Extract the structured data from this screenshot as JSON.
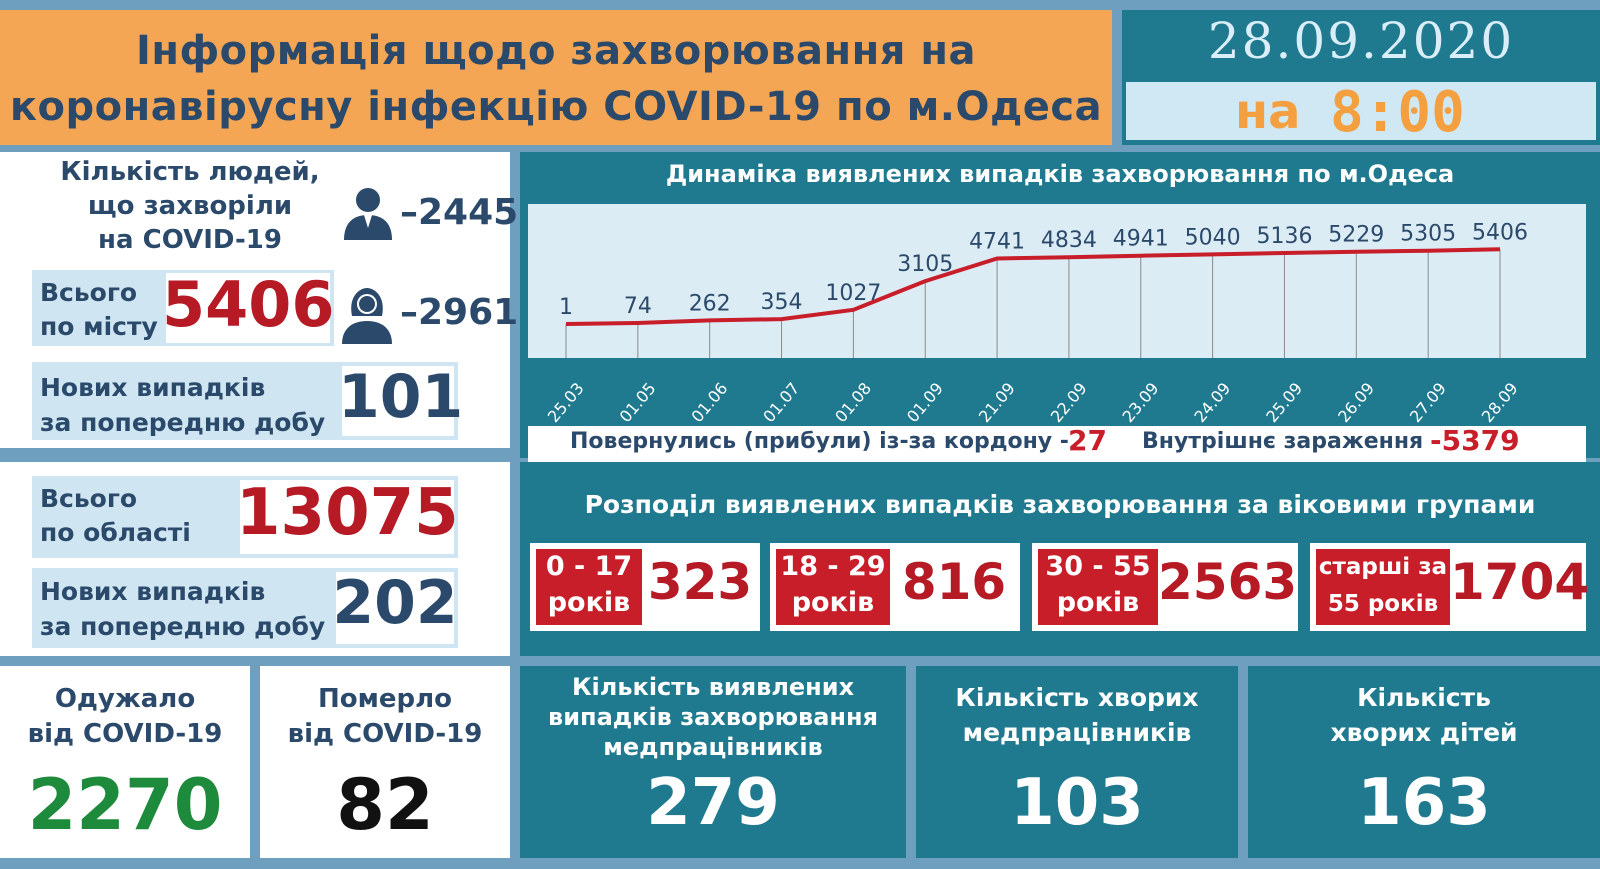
{
  "header": {
    "title_line1": "Інформація щодо захворювання на",
    "title_line2": "коронавірусну інфекцію COVID-19 по м.Одеса",
    "date": "28.09.2020",
    "time_prefix": "на",
    "time": "8:00"
  },
  "city": {
    "sick_label_line1": "Кількість людей,",
    "sick_label_line2": "що захворіли",
    "sick_label_line3": "на COVID-19",
    "men_count": "–2445",
    "women_count": "–2961",
    "total_label_line1": "Всього",
    "total_label_line2": "по місту",
    "total_value": "5406",
    "new_label_line1": "Нових випадків",
    "new_label_line2": "за попередню добу",
    "new_value": "101"
  },
  "region": {
    "total_label_line1": "Всього",
    "total_label_line2": "по області",
    "total_value": "13075",
    "new_label_line1": "Нових випадків",
    "new_label_line2": "за попередню добу",
    "new_value": "202"
  },
  "outcomes": {
    "recovered_line1": "Одужало",
    "recovered_line2": "від COVID-19",
    "recovered_value": "2270",
    "died_line1": "Померло",
    "died_line2": "від COVID-19",
    "died_value": "82"
  },
  "chart_data": {
    "type": "line",
    "title": "Динаміка виявлених випадків захворювання по м.Одеса",
    "categories": [
      "25.03",
      "01.05",
      "01.06",
      "01.07",
      "01.08",
      "01.09",
      "21.09",
      "22.09",
      "23.09",
      "24.09",
      "25.09",
      "26.09",
      "27.09",
      "28.09"
    ],
    "series": [
      {
        "values": [
          1,
          74,
          262,
          354,
          1027,
          3105,
          4741,
          4834,
          4941,
          5040,
          5136,
          5229,
          5305,
          5406
        ]
      }
    ],
    "line_color": "#c81e2a",
    "grid": true
  },
  "origin": {
    "returned_label": "Повернулись (прибули) із-за кордону -",
    "returned_value": "27",
    "internal_label": "Внутрішнє зараження",
    "internal_value": "-5379"
  },
  "age_groups": {
    "title": "Розподіл виявлених випадків захворювання за віковими групами",
    "groups": [
      {
        "label_line1": "0 - 17",
        "label_line2": "років",
        "value": "323"
      },
      {
        "label_line1": "18 - 29",
        "label_line2": "років",
        "value": "816"
      },
      {
        "label_line1": "30 - 55",
        "label_line2": "років",
        "value": "2563"
      },
      {
        "label_line1": "старші за",
        "label_line2": "55 років",
        "value": "1704"
      }
    ]
  },
  "medics": {
    "detected_line1": "Кількість виявлених",
    "detected_line2": "випадків захворювання",
    "detected_line3": "медпрацівників",
    "detected_value": "279",
    "sick_line1": "Кількість хворих",
    "sick_line2": "медпрацівників",
    "sick_value": "103",
    "children_line1": "Кількість",
    "children_line2": "хворих дітей",
    "children_value": "163"
  },
  "colors": {
    "teal": "#1f7a8f",
    "orange": "#f4a654",
    "red": "#b51a25",
    "navy": "#2b4a6b",
    "green": "#1e8a3c"
  }
}
